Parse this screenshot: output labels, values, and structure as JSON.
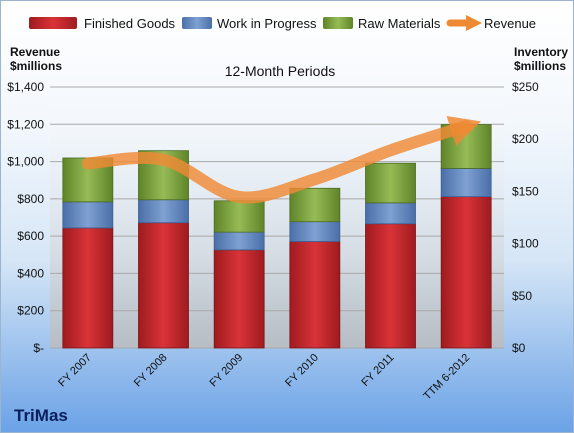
{
  "chart_data": {
    "type": "bar",
    "stacked": true,
    "title": "12-Month Periods",
    "company": "TriMas",
    "categories": [
      "FY 2007",
      "FY 2008",
      "FY 2009",
      "FY 2010",
      "FY 2011",
      "TTM 6-2012"
    ],
    "left_axis": {
      "label_line1": "Revenue",
      "label_line2": "$millions",
      "ylim": [
        0,
        1400
      ],
      "ticks": [
        0,
        200,
        400,
        600,
        800,
        1000,
        1200,
        1400
      ],
      "tick_labels": [
        "$-",
        "$200",
        "$400",
        "$600",
        "$800",
        "$1,000",
        "$1,200",
        "$1,400"
      ]
    },
    "right_axis": {
      "label_line1": "Inventory",
      "label_line2": "$millions",
      "ylim": [
        0,
        250
      ],
      "ticks": [
        0,
        50,
        100,
        150,
        200,
        250
      ],
      "tick_labels": [
        "$0",
        "$50",
        "$100",
        "$150",
        "$200",
        "$250"
      ]
    },
    "series": [
      {
        "name": "Finished Goods",
        "type": "bar",
        "axis": "right",
        "color": "#c0282b",
        "values": [
          115,
          120,
          94,
          102,
          119,
          145
        ]
      },
      {
        "name": "Work in Progress",
        "type": "bar",
        "axis": "right",
        "color": "#5f86bf",
        "values": [
          25,
          22,
          17,
          19,
          20,
          27
        ]
      },
      {
        "name": "Raw Materials",
        "type": "bar",
        "axis": "right",
        "color": "#7a9f3a",
        "values": [
          42,
          47,
          30,
          32,
          38,
          42
        ]
      },
      {
        "name": "Revenue",
        "type": "line",
        "axis": "left",
        "color": "#ef8a34",
        "values": [
          990,
          1010,
          810,
          905,
          1060,
          1190
        ]
      }
    ],
    "legend": "top",
    "grid": true
  }
}
